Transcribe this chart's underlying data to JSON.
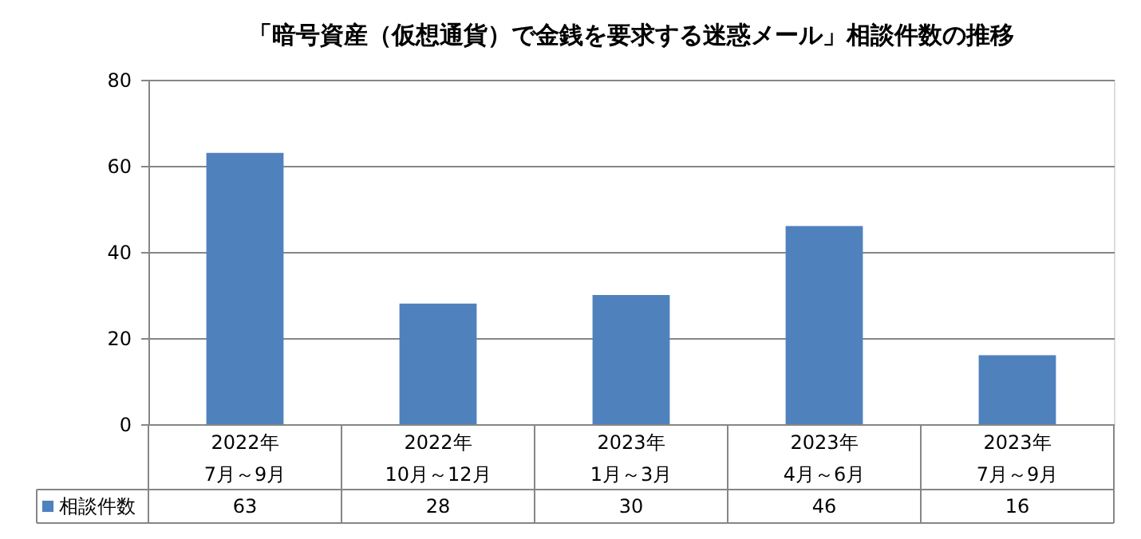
{
  "chart_data": {
    "type": "bar",
    "title": "「暗号資産（仮想通貨）で金銭を要求する迷惑メール」相談件数の推移",
    "categories": [
      "2022年\n7月～9月",
      "2022年\n10月～12月",
      "2023年\n1月～3月",
      "2023年\n4月～6月",
      "2023年\n7月～9月"
    ],
    "series": [
      {
        "name": "相談件数",
        "color": "#4f81bd",
        "values": [
          63,
          28,
          30,
          46,
          16
        ]
      }
    ],
    "ylim": [
      0,
      80
    ],
    "yticks": [
      0,
      20,
      40,
      60,
      80
    ],
    "grid": "y",
    "legend": "bottom left",
    "data_labels": true
  }
}
